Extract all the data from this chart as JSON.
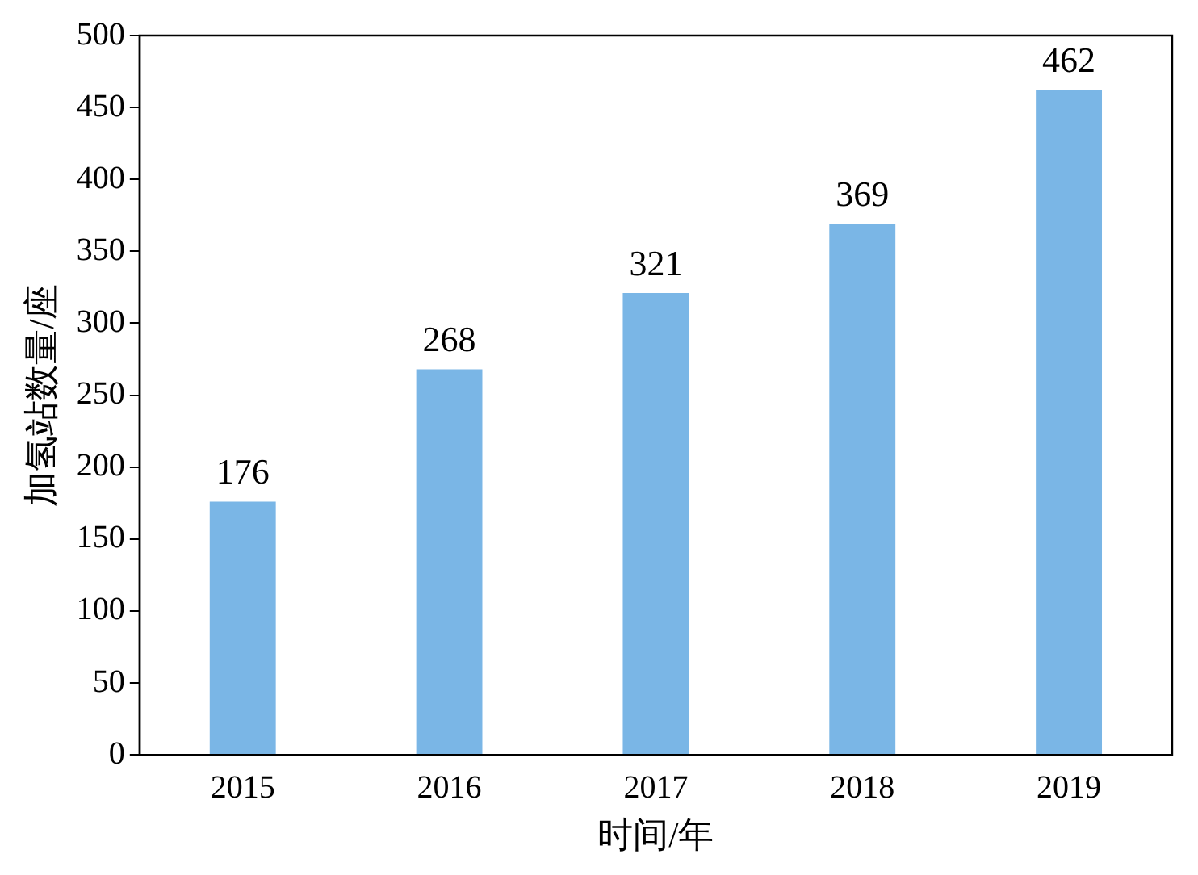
{
  "chart_data": {
    "type": "bar",
    "xlabel": "时间/年",
    "ylabel": "加氢站数量/座",
    "categories": [
      "2015",
      "2016",
      "2017",
      "2018",
      "2019"
    ],
    "values": [
      176,
      268,
      321,
      369,
      462
    ],
    "color": "#7ab6e6",
    "ylim": [
      0,
      500
    ],
    "yticks": [
      0,
      50,
      100,
      150,
      200,
      250,
      300,
      350,
      400,
      450,
      500
    ],
    "grid": false,
    "legend": false,
    "data_labels": true
  }
}
